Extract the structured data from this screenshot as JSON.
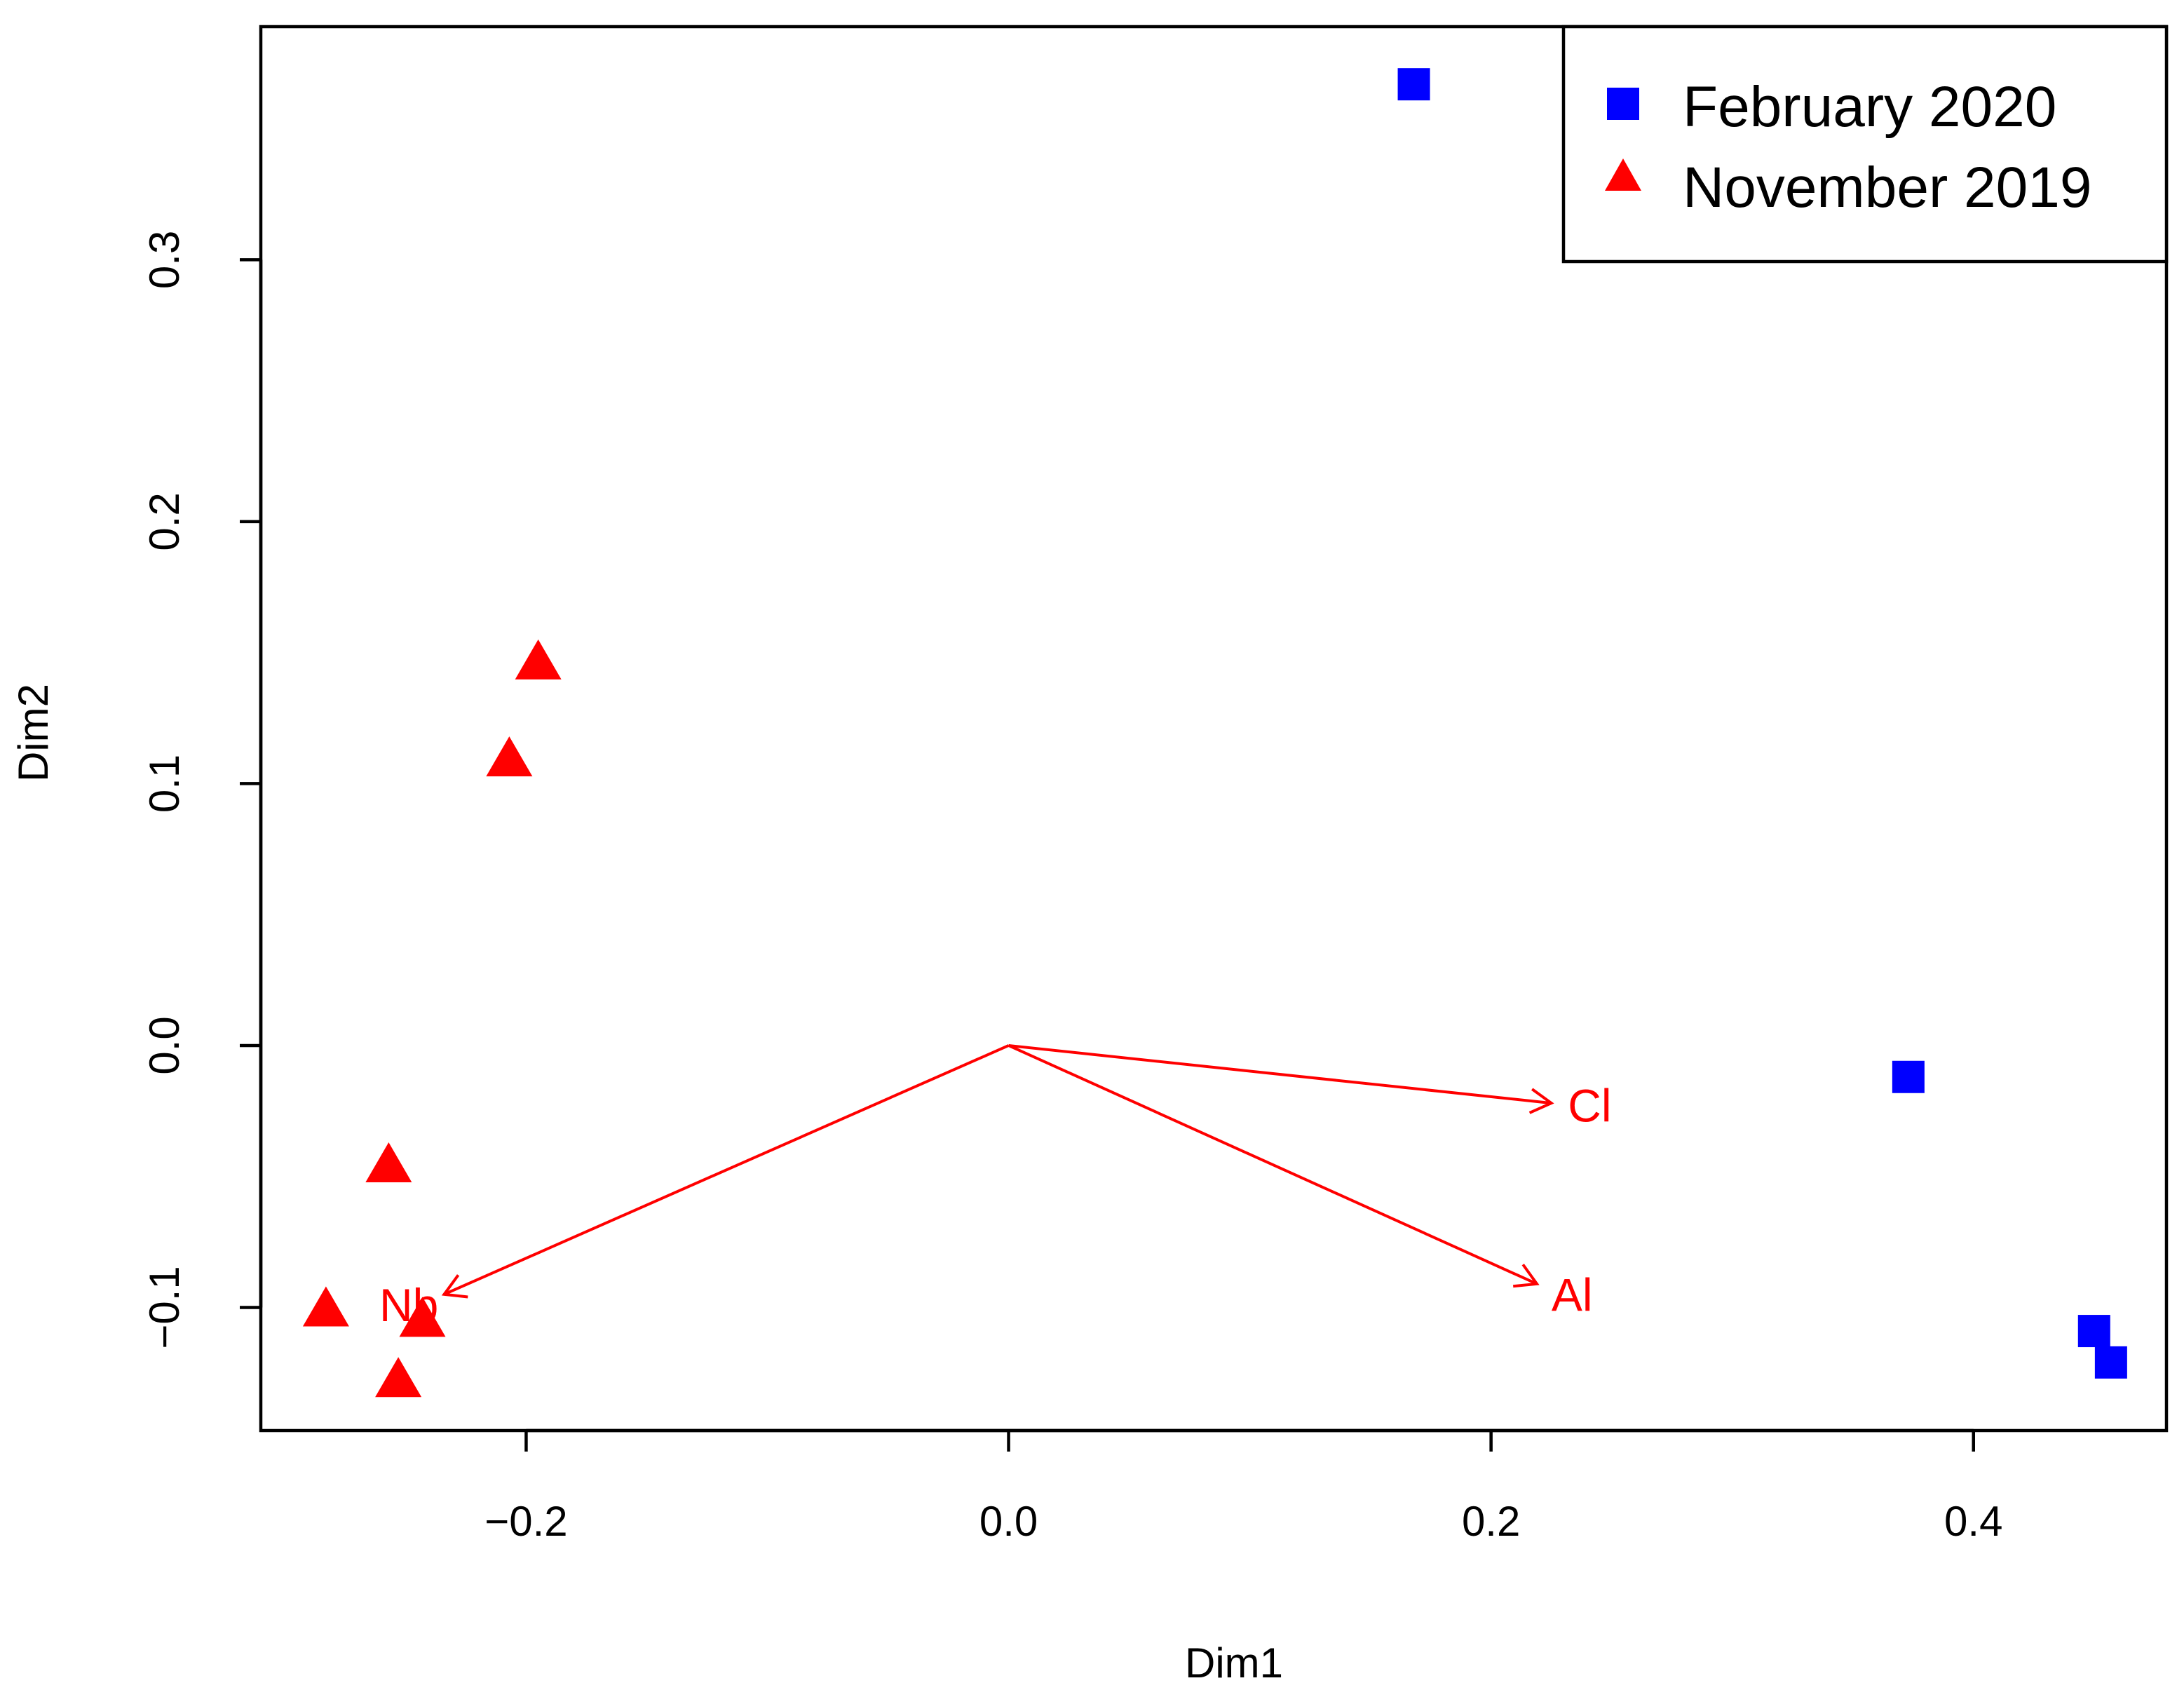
{
  "chart_data": {
    "type": "scatter",
    "title": "",
    "xlabel": "Dim1",
    "ylabel": "Dim2",
    "xlim": [
      -0.31,
      0.48
    ],
    "ylim": [
      -0.147,
      0.389
    ],
    "x_ticks": [
      -0.2,
      0.0,
      0.2,
      0.4
    ],
    "x_tick_labels": [
      "−0.2",
      "0.0",
      "0.2",
      "0.4"
    ],
    "y_ticks": [
      -0.1,
      0.0,
      0.1,
      0.2,
      0.3
    ],
    "y_tick_labels": [
      "−0.1",
      "0.0",
      "0.1",
      "0.2",
      "0.3"
    ],
    "grid": false,
    "legend_position": "top-right",
    "series": [
      {
        "name": "February 2020",
        "marker": "square",
        "color": "#0000FF",
        "points": [
          {
            "x": 0.168,
            "y": 0.367
          },
          {
            "x": 0.373,
            "y": -0.012
          },
          {
            "x": 0.45,
            "y": -0.109
          },
          {
            "x": 0.457,
            "y": -0.121
          }
        ]
      },
      {
        "name": "November 2019",
        "marker": "triangle",
        "color": "#FF0000",
        "points": [
          {
            "x": -0.195,
            "y": 0.147
          },
          {
            "x": -0.207,
            "y": 0.11
          },
          {
            "x": -0.257,
            "y": -0.045
          },
          {
            "x": -0.283,
            "y": -0.1
          },
          {
            "x": -0.243,
            "y": -0.104
          },
          {
            "x": -0.253,
            "y": -0.127
          }
        ]
      }
    ],
    "vectors": {
      "color": "#FF0000",
      "origin": {
        "x": 0.0,
        "y": 0.0
      },
      "items": [
        {
          "label": "Cl",
          "x": 0.225,
          "y": -0.022
        },
        {
          "label": "Al",
          "x": 0.219,
          "y": -0.091
        },
        {
          "label": "Nb",
          "x": -0.234,
          "y": -0.095
        }
      ]
    }
  }
}
